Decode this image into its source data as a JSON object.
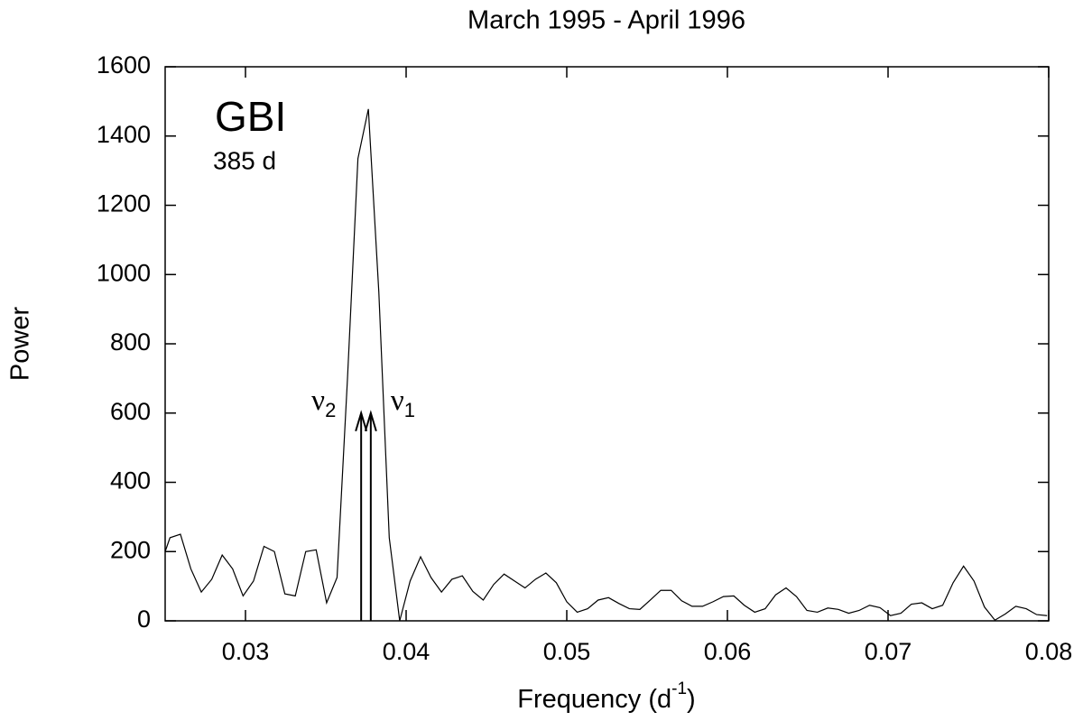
{
  "chart_data": {
    "type": "line",
    "title": "March 1995 - April 1996",
    "xlabel": {
      "text": "Frequency (d",
      "sup": "-1",
      "end": ")"
    },
    "ylabel": "Power",
    "annotations": [
      {
        "text": "GBI"
      },
      {
        "text": "385 d"
      }
    ],
    "arrows": [
      {
        "label": "ν",
        "subscript": "2",
        "x": 0.0372,
        "y": 600
      },
      {
        "label": "ν",
        "subscript": "1",
        "x": 0.0378,
        "y": 600
      }
    ],
    "color": "#000000",
    "xlim": [
      0.025,
      0.08
    ],
    "ylim": [
      0,
      1600
    ],
    "xticks": [
      0.03,
      0.04,
      0.05,
      0.06,
      0.07,
      0.08
    ],
    "yticks": [
      0,
      200,
      400,
      600,
      800,
      1000,
      1200,
      1400,
      1600
    ],
    "grid": false,
    "x": [
      0.025,
      0.0253,
      0.02595,
      0.0266,
      0.02725,
      0.0279,
      0.02855,
      0.0292,
      0.02985,
      0.0305,
      0.03115,
      0.0318,
      0.03245,
      0.0331,
      0.03375,
      0.0344,
      0.03505,
      0.0357,
      0.03635,
      0.037,
      0.03765,
      0.0383,
      0.03895,
      0.0396,
      0.04025,
      0.0409,
      0.04155,
      0.0422,
      0.04285,
      0.0435,
      0.04415,
      0.0448,
      0.04545,
      0.0461,
      0.04675,
      0.0474,
      0.04805,
      0.0487,
      0.04935,
      0.05,
      0.05065,
      0.0513,
      0.05195,
      0.0526,
      0.05325,
      0.0539,
      0.05455,
      0.0552,
      0.05585,
      0.0565,
      0.05715,
      0.0578,
      0.05845,
      0.0591,
      0.05975,
      0.0604,
      0.06105,
      0.0617,
      0.06235,
      0.063,
      0.06365,
      0.0643,
      0.06495,
      0.0656,
      0.06625,
      0.0669,
      0.06755,
      0.0682,
      0.06885,
      0.0695,
      0.07015,
      0.0708,
      0.07145,
      0.0721,
      0.07275,
      0.0734,
      0.07405,
      0.0747,
      0.07535,
      0.076,
      0.07665,
      0.0773,
      0.07795,
      0.0786,
      0.07925,
      0.0799
    ],
    "values": [
      200,
      240,
      250,
      150,
      83,
      120,
      190,
      150,
      72,
      115,
      215,
      200,
      78,
      72,
      200,
      205,
      52,
      125,
      700,
      1335,
      1478,
      950,
      240,
      0,
      115,
      185,
      125,
      83,
      120,
      130,
      85,
      60,
      105,
      135,
      115,
      95,
      120,
      138,
      110,
      55,
      25,
      35,
      60,
      67,
      50,
      35,
      33,
      60,
      88,
      88,
      58,
      42,
      42,
      55,
      70,
      72,
      45,
      25,
      35,
      75,
      95,
      70,
      30,
      25,
      37,
      33,
      22,
      30,
      45,
      38,
      15,
      22,
      48,
      52,
      35,
      45,
      110,
      158,
      115,
      40,
      2,
      20,
      42,
      35,
      18,
      15
    ]
  }
}
